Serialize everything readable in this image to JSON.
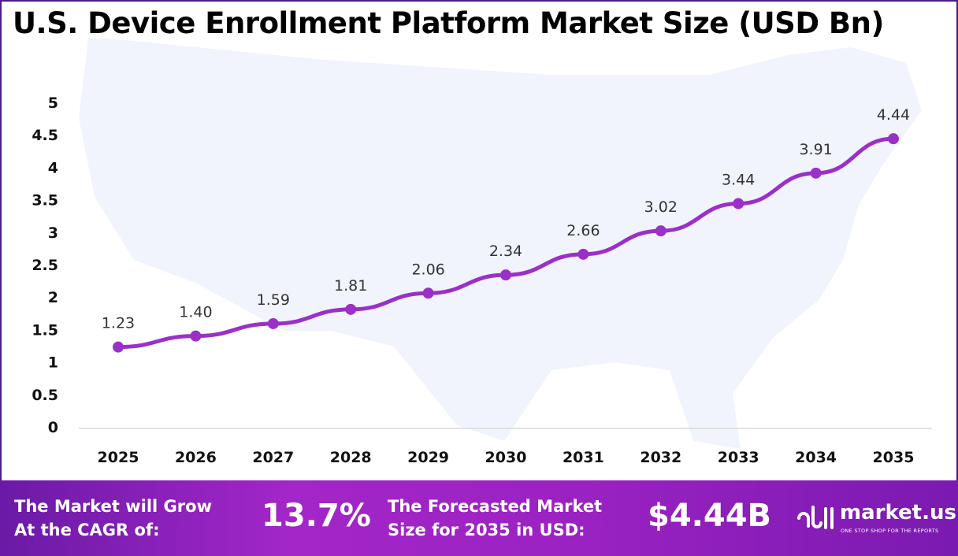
{
  "title": "U.S. Device Enrollment Platform Market Size (USD Bn)",
  "chart_data": {
    "type": "line",
    "title": "U.S. Device Enrollment Platform Market Size (USD Bn)",
    "categories": [
      "2025",
      "2026",
      "2027",
      "2028",
      "2029",
      "2030",
      "2031",
      "2032",
      "2033",
      "2034",
      "2035"
    ],
    "values": [
      1.23,
      1.4,
      1.59,
      1.81,
      2.06,
      2.34,
      2.66,
      3.02,
      3.44,
      3.91,
      4.44
    ],
    "data_labels": [
      "1.23",
      "1.40",
      "1.59",
      "1.81",
      "2.06",
      "2.34",
      "2.66",
      "3.02",
      "3.44",
      "3.91",
      "4.44"
    ],
    "yticks": [
      "0",
      "0.5",
      "1",
      "1.5",
      "2",
      "2.5",
      "3",
      "3.5",
      "4",
      "4.5",
      "5"
    ],
    "ylim": [
      0,
      5
    ],
    "grid": false,
    "color": "#9b30c8"
  },
  "footer": {
    "cagr_text_1": "The Market will Grow",
    "cagr_text_2": "At the CAGR of:",
    "cagr_value": "13.7%",
    "forecast_text_1": "The Forecasted Market",
    "forecast_text_2": "Size for 2035 in USD:",
    "forecast_value": "$4.44B",
    "logo_name": "market.us",
    "logo_tagline": "ONE STOP SHOP FOR THE REPORTS"
  }
}
